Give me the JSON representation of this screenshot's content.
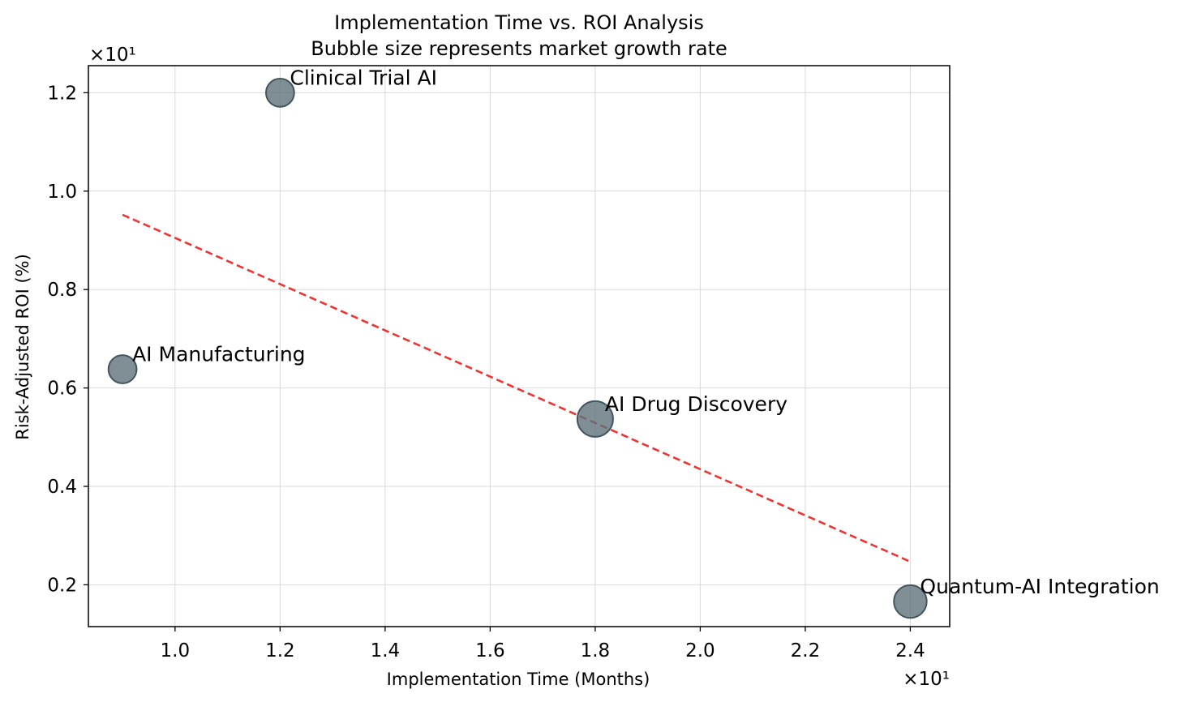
{
  "chart_data": {
    "type": "scatter",
    "title": "Implementation Time vs. ROI Analysis",
    "subtitle": "Bubble size represents market growth rate",
    "xlabel": "Implementation Time (Months)",
    "ylabel": "Risk-Adjusted ROI (%)",
    "x_offset_label": "×10¹",
    "y_offset_label": "×10¹",
    "xlim": [
      8.35,
      24.75
    ],
    "ylim": [
      1.15,
      12.55
    ],
    "x_ticks": [
      10,
      12,
      14,
      16,
      18,
      20,
      22,
      24
    ],
    "x_tick_labels": [
      "1.0",
      "1.2",
      "1.4",
      "1.6",
      "1.8",
      "2.0",
      "2.2",
      "2.4"
    ],
    "y_ticks": [
      2,
      4,
      6,
      8,
      10,
      12
    ],
    "y_tick_labels": [
      "0.2",
      "0.4",
      "0.6",
      "0.8",
      "1.0",
      "1.2"
    ],
    "grid": true,
    "bubble_color": "#5f737b",
    "bubble_edge_color": "#44555d",
    "trend_color": "#ee3333",
    "points": [
      {
        "label": "AI Manufacturing",
        "x": 9,
        "y": 6.38,
        "growth": 28
      },
      {
        "label": "Clinical Trial AI",
        "x": 12,
        "y": 12.0,
        "growth": 28
      },
      {
        "label": "AI Drug Discovery",
        "x": 18,
        "y": 5.37,
        "growth": 45
      },
      {
        "label": "Quantum-AI Integration",
        "x": 24,
        "y": 1.66,
        "growth": 38
      }
    ],
    "trendline": {
      "x": [
        9,
        24
      ],
      "y": [
        9.52,
        2.47
      ]
    }
  }
}
